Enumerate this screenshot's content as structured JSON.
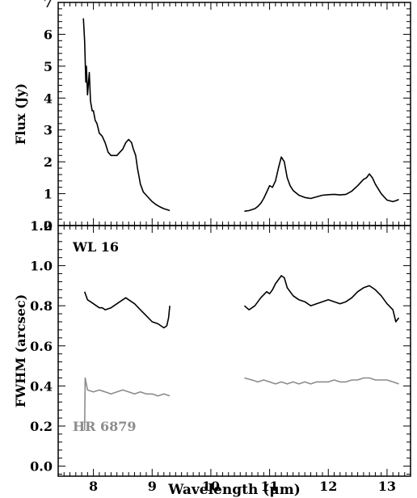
{
  "chart_data": [
    {
      "type": "line",
      "panel": "top",
      "xlabel": "",
      "ylabel": "Flux (Jy)",
      "xlim": [
        7.4,
        13.4
      ],
      "ylim": [
        0,
        7
      ],
      "yticks": [
        0,
        1,
        2,
        3,
        4,
        5,
        6,
        7
      ],
      "ytick_labels": [
        "0",
        "1",
        "2",
        "3",
        "4",
        "5",
        "6",
        "7"
      ],
      "grid": false,
      "series": [
        {
          "color": "#000000",
          "segments": [
            [
              [
                7.83,
                6.5
              ],
              [
                7.85,
                5.8
              ],
              [
                7.87,
                4.5
              ],
              [
                7.88,
                5.0
              ],
              [
                7.9,
                4.1
              ],
              [
                7.93,
                4.8
              ],
              [
                7.95,
                3.9
              ],
              [
                7.98,
                3.6
              ],
              [
                8.0,
                3.6
              ],
              [
                8.03,
                3.3
              ],
              [
                8.06,
                3.2
              ],
              [
                8.1,
                2.9
              ],
              [
                8.15,
                2.8
              ],
              [
                8.2,
                2.6
              ],
              [
                8.25,
                2.3
              ],
              [
                8.3,
                2.2
              ],
              [
                8.35,
                2.2
              ],
              [
                8.4,
                2.2
              ],
              [
                8.45,
                2.3
              ],
              [
                8.5,
                2.4
              ],
              [
                8.55,
                2.6
              ],
              [
                8.6,
                2.7
              ],
              [
                8.65,
                2.6
              ],
              [
                8.68,
                2.4
              ],
              [
                8.72,
                2.2
              ],
              [
                8.75,
                1.8
              ],
              [
                8.78,
                1.5
              ],
              [
                8.8,
                1.3
              ],
              [
                8.82,
                1.2
              ],
              [
                8.85,
                1.05
              ],
              [
                8.9,
                0.95
              ],
              [
                8.95,
                0.85
              ],
              [
                9.0,
                0.75
              ],
              [
                9.05,
                0.68
              ],
              [
                9.1,
                0.62
              ],
              [
                9.15,
                0.57
              ],
              [
                9.2,
                0.53
              ],
              [
                9.25,
                0.5
              ],
              [
                9.3,
                0.47
              ]
            ],
            [
              [
                10.57,
                0.45
              ],
              [
                10.6,
                0.46
              ],
              [
                10.65,
                0.47
              ],
              [
                10.7,
                0.5
              ],
              [
                10.75,
                0.53
              ],
              [
                10.8,
                0.6
              ],
              [
                10.85,
                0.7
              ],
              [
                10.9,
                0.85
              ],
              [
                10.95,
                1.05
              ],
              [
                11.0,
                1.25
              ],
              [
                11.05,
                1.2
              ],
              [
                11.1,
                1.4
              ],
              [
                11.15,
                1.8
              ],
              [
                11.2,
                2.15
              ],
              [
                11.25,
                2.0
              ],
              [
                11.3,
                1.5
              ],
              [
                11.35,
                1.25
              ],
              [
                11.4,
                1.1
              ],
              [
                11.5,
                0.95
              ],
              [
                11.6,
                0.88
              ],
              [
                11.7,
                0.85
              ],
              [
                11.8,
                0.9
              ],
              [
                11.9,
                0.95
              ],
              [
                12.0,
                0.97
              ],
              [
                12.1,
                0.98
              ],
              [
                12.2,
                0.96
              ],
              [
                12.3,
                0.98
              ],
              [
                12.4,
                1.08
              ],
              [
                12.5,
                1.25
              ],
              [
                12.6,
                1.45
              ],
              [
                12.65,
                1.5
              ],
              [
                12.7,
                1.62
              ],
              [
                12.75,
                1.5
              ],
              [
                12.8,
                1.3
              ],
              [
                12.9,
                1.0
              ],
              [
                13.0,
                0.8
              ],
              [
                13.1,
                0.75
              ],
              [
                13.15,
                0.78
              ],
              [
                13.2,
                0.82
              ]
            ]
          ]
        }
      ]
    },
    {
      "type": "line",
      "panel": "bottom",
      "xlabel": "Wavelength (μm)",
      "ylabel": "FWHM (arcsec)",
      "xlim": [
        7.4,
        13.4
      ],
      "ylim": [
        -0.05,
        1.2
      ],
      "xticks": [
        8,
        9,
        10,
        11,
        12,
        13
      ],
      "xtick_labels": [
        "8",
        "9",
        "10",
        "11",
        "12",
        "13"
      ],
      "yticks": [
        0.0,
        0.2,
        0.4,
        0.6,
        0.8,
        1.0,
        1.2
      ],
      "ytick_labels": [
        "0.0",
        "0.2",
        "0.4",
        "0.6",
        "0.8",
        "1.0",
        "1.2"
      ],
      "grid": false,
      "series": [
        {
          "name": "WL 16",
          "color": "#000000",
          "segments": [
            [
              [
                7.85,
                0.87
              ],
              [
                7.9,
                0.83
              ],
              [
                7.95,
                0.82
              ],
              [
                8.0,
                0.81
              ],
              [
                8.05,
                0.8
              ],
              [
                8.1,
                0.79
              ],
              [
                8.15,
                0.79
              ],
              [
                8.2,
                0.78
              ],
              [
                8.3,
                0.79
              ],
              [
                8.4,
                0.81
              ],
              [
                8.5,
                0.83
              ],
              [
                8.55,
                0.84
              ],
              [
                8.6,
                0.83
              ],
              [
                8.7,
                0.81
              ],
              [
                8.8,
                0.78
              ],
              [
                8.9,
                0.75
              ],
              [
                9.0,
                0.72
              ],
              [
                9.1,
                0.71
              ],
              [
                9.2,
                0.69
              ],
              [
                9.25,
                0.7
              ],
              [
                9.28,
                0.74
              ],
              [
                9.3,
                0.8
              ]
            ],
            [
              [
                10.57,
                0.8
              ],
              [
                10.65,
                0.78
              ],
              [
                10.75,
                0.8
              ],
              [
                10.85,
                0.84
              ],
              [
                10.95,
                0.87
              ],
              [
                11.0,
                0.86
              ],
              [
                11.05,
                0.88
              ],
              [
                11.1,
                0.91
              ],
              [
                11.15,
                0.93
              ],
              [
                11.2,
                0.95
              ],
              [
                11.25,
                0.94
              ],
              [
                11.3,
                0.89
              ],
              [
                11.4,
                0.85
              ],
              [
                11.5,
                0.83
              ],
              [
                11.6,
                0.82
              ],
              [
                11.7,
                0.8
              ],
              [
                11.8,
                0.81
              ],
              [
                11.9,
                0.82
              ],
              [
                12.0,
                0.83
              ],
              [
                12.1,
                0.82
              ],
              [
                12.2,
                0.81
              ],
              [
                12.3,
                0.82
              ],
              [
                12.4,
                0.84
              ],
              [
                12.5,
                0.87
              ],
              [
                12.6,
                0.89
              ],
              [
                12.7,
                0.9
              ],
              [
                12.8,
                0.88
              ],
              [
                12.9,
                0.85
              ],
              [
                13.0,
                0.81
              ],
              [
                13.1,
                0.78
              ],
              [
                13.15,
                0.72
              ],
              [
                13.2,
                0.74
              ]
            ]
          ]
        },
        {
          "name": "HR 6879",
          "color": "#8c8c8c",
          "segments": [
            [
              [
                7.85,
                0.18
              ],
              [
                7.86,
                0.44
              ],
              [
                7.9,
                0.38
              ],
              [
                8.0,
                0.37
              ],
              [
                8.1,
                0.38
              ],
              [
                8.2,
                0.37
              ],
              [
                8.3,
                0.36
              ],
              [
                8.4,
                0.37
              ],
              [
                8.5,
                0.38
              ],
              [
                8.6,
                0.37
              ],
              [
                8.7,
                0.36
              ],
              [
                8.8,
                0.37
              ],
              [
                8.9,
                0.36
              ],
              [
                9.0,
                0.36
              ],
              [
                9.1,
                0.35
              ],
              [
                9.2,
                0.36
              ],
              [
                9.3,
                0.35
              ]
            ],
            [
              [
                10.57,
                0.44
              ],
              [
                10.7,
                0.43
              ],
              [
                10.8,
                0.42
              ],
              [
                10.9,
                0.43
              ],
              [
                11.0,
                0.42
              ],
              [
                11.1,
                0.41
              ],
              [
                11.2,
                0.42
              ],
              [
                11.3,
                0.41
              ],
              [
                11.4,
                0.42
              ],
              [
                11.5,
                0.41
              ],
              [
                11.6,
                0.42
              ],
              [
                11.7,
                0.41
              ],
              [
                11.8,
                0.42
              ],
              [
                11.9,
                0.42
              ],
              [
                12.0,
                0.42
              ],
              [
                12.1,
                0.43
              ],
              [
                12.2,
                0.42
              ],
              [
                12.3,
                0.42
              ],
              [
                12.4,
                0.43
              ],
              [
                12.5,
                0.43
              ],
              [
                12.6,
                0.44
              ],
              [
                12.7,
                0.44
              ],
              [
                12.8,
                0.43
              ],
              [
                12.9,
                0.43
              ],
              [
                13.0,
                0.43
              ],
              [
                13.1,
                0.42
              ],
              [
                13.2,
                0.41
              ]
            ]
          ]
        }
      ]
    }
  ]
}
